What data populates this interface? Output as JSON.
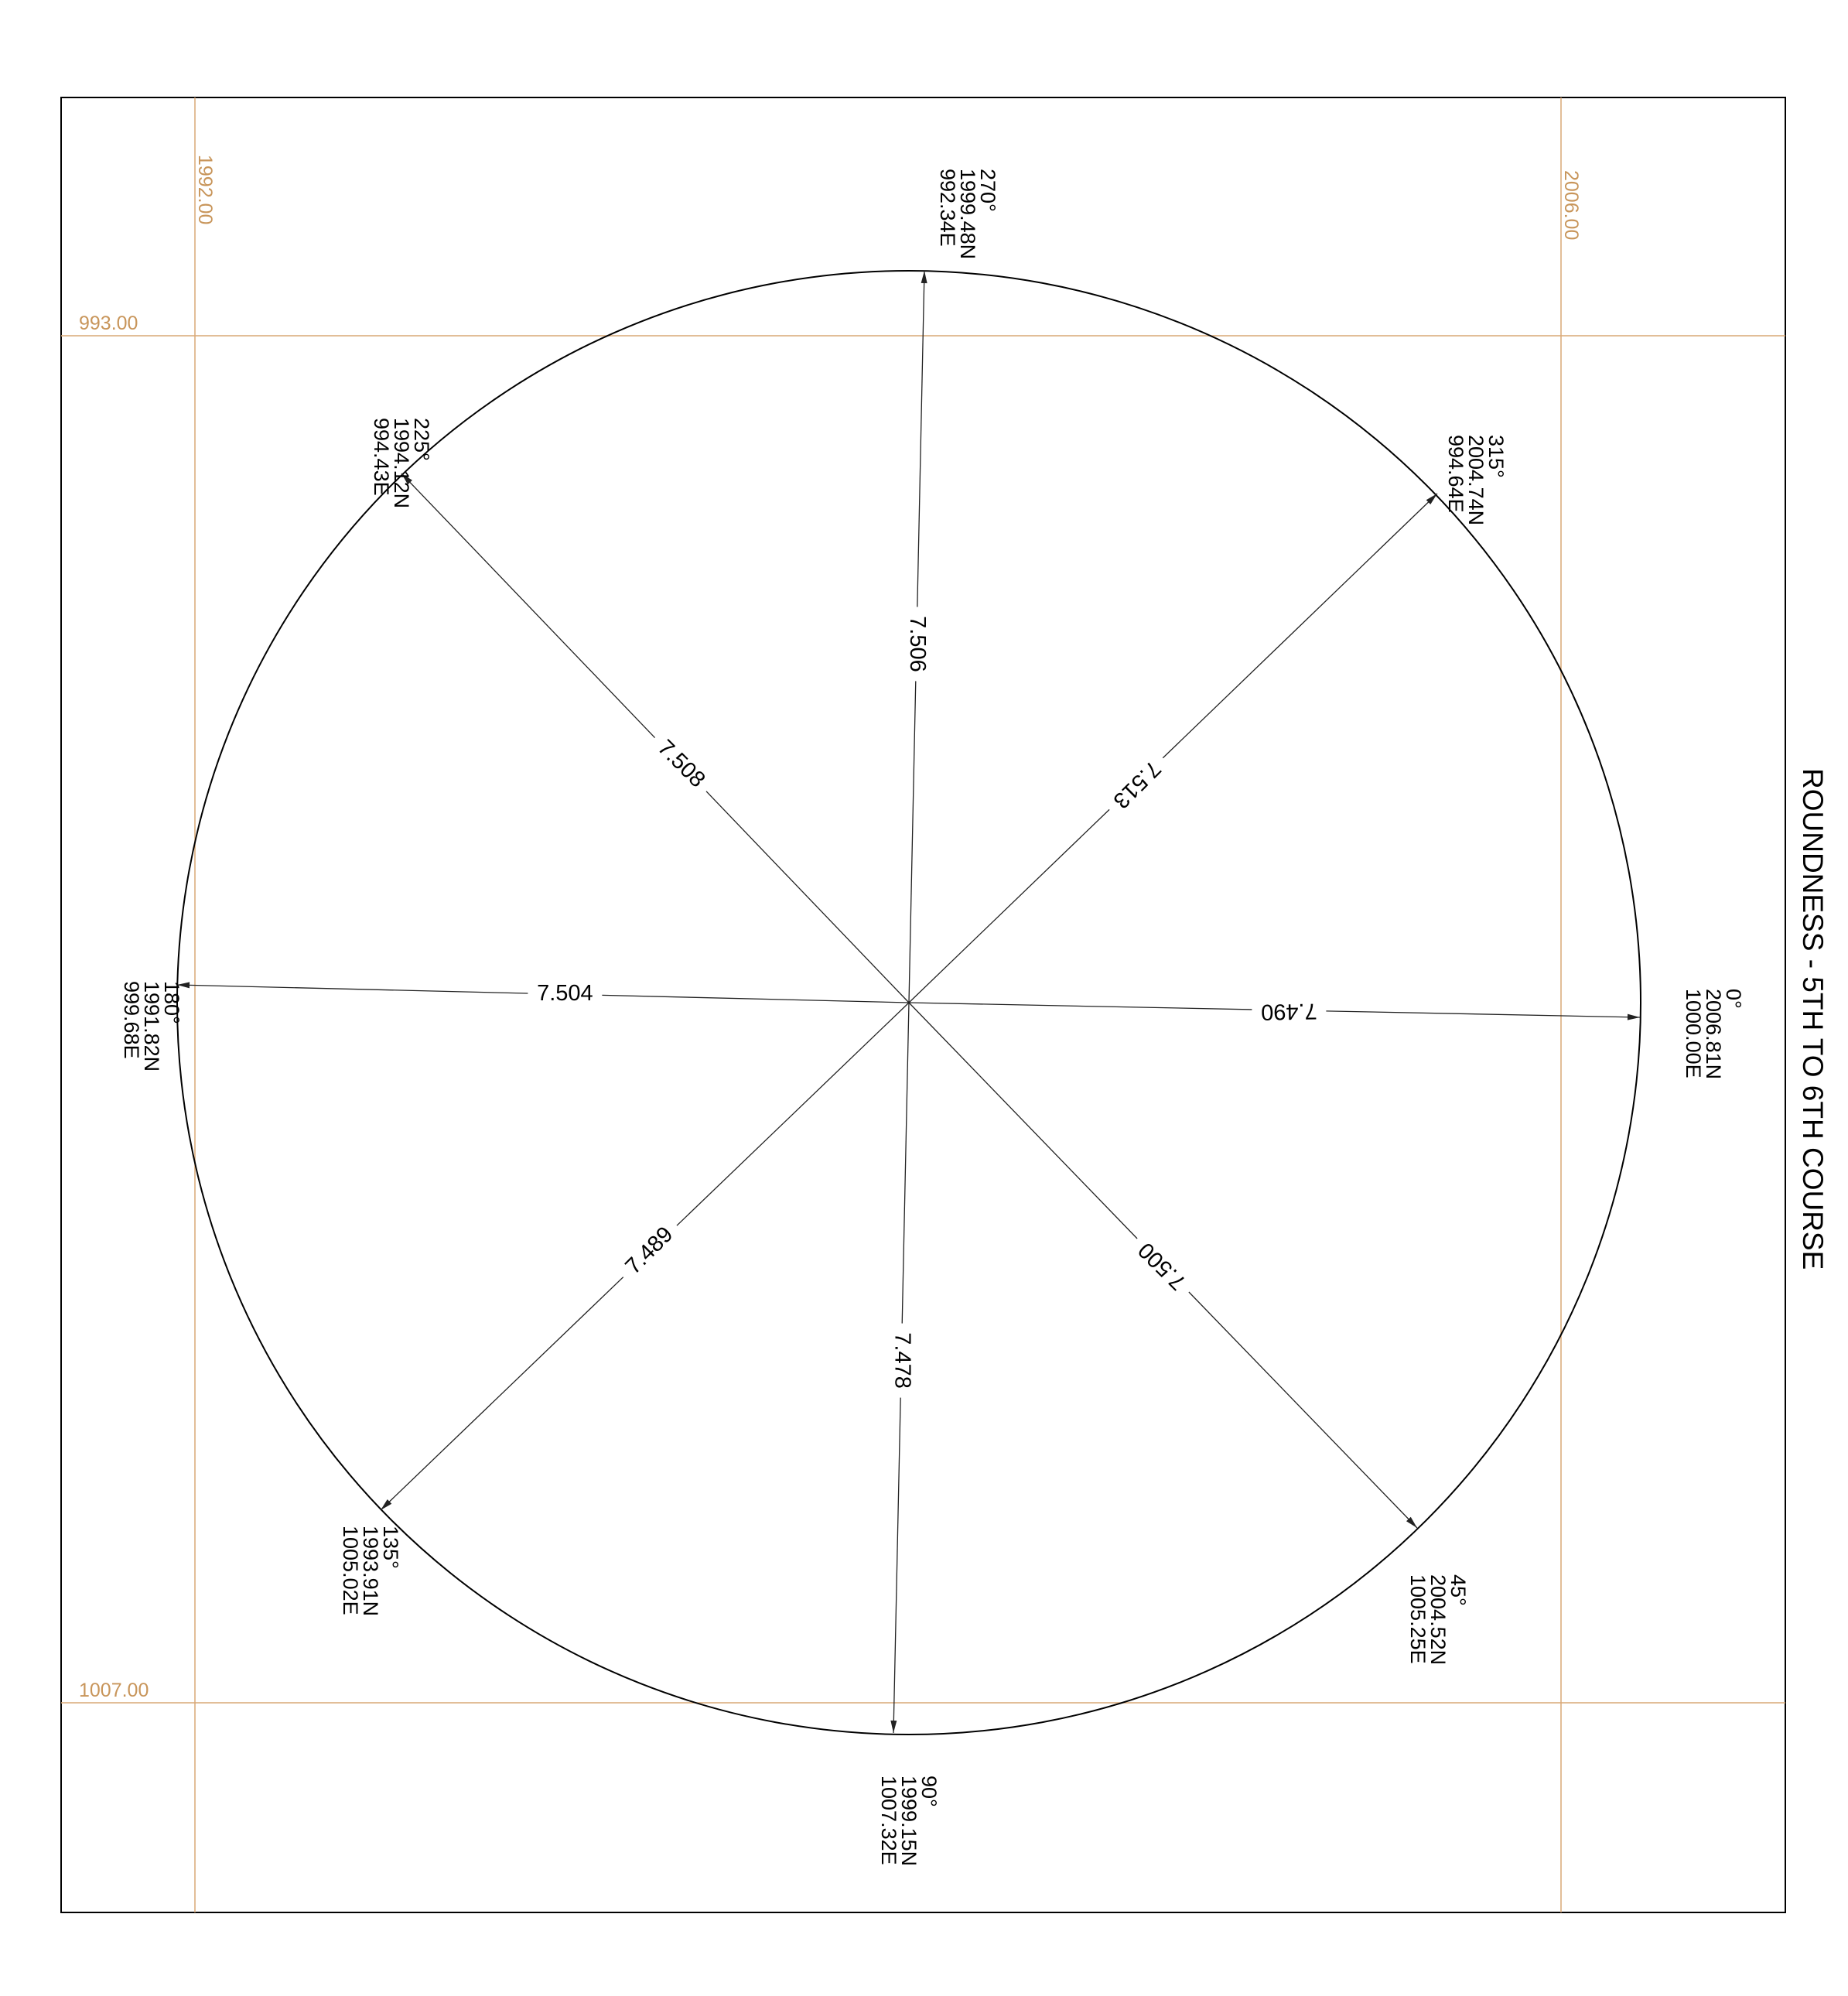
{
  "title": "ROUNDNESS - 5TH TO 6TH COURSE",
  "colors": {
    "ink": "#000000",
    "grid": "#c8955a",
    "background": "#ffffff"
  },
  "grid_labels": {
    "x_left": "1992.00",
    "x_right": "2006.00",
    "y_top": "993.00",
    "y_bottom": "1007.00"
  },
  "measurements": [
    {
      "angle": "0°",
      "north": "2006.81N",
      "east": "1000.00E",
      "radius": "7.490"
    },
    {
      "angle": "45°",
      "north": "2004.52N",
      "east": "1005.25E",
      "radius": "7.500"
    },
    {
      "angle": "90°",
      "north": "1999.15N",
      "east": "1007.32E",
      "radius": "7.478"
    },
    {
      "angle": "135°",
      "north": "1993.91N",
      "east": "1005.02E",
      "radius": "7.489"
    },
    {
      "angle": "180°",
      "north": "1991.82N",
      "east": "999.68E",
      "radius": "7.504"
    },
    {
      "angle": "225°",
      "north": "1994.12N",
      "east": "994.43E",
      "radius": "7.508"
    },
    {
      "angle": "270°",
      "north": "1999.48N",
      "east": "992.34E",
      "radius": "7.506"
    },
    {
      "angle": "315°",
      "north": "2004.74N",
      "east": "994.64E",
      "radius": "7.513"
    }
  ]
}
